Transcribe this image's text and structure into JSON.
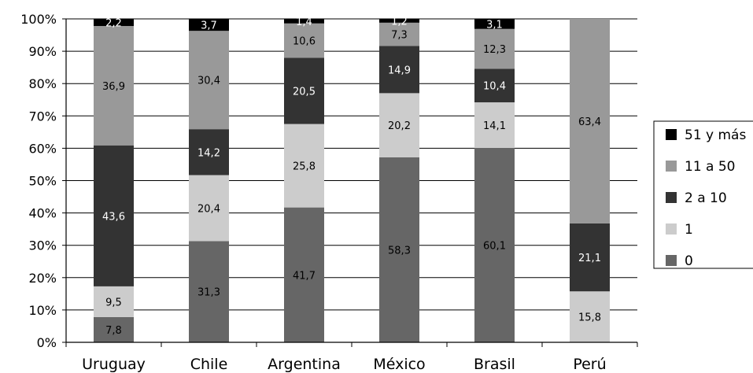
{
  "chart_data": {
    "type": "bar",
    "stacked": true,
    "normalized": true,
    "categories": [
      "Uruguay",
      "Chile",
      "Argentina",
      "México",
      "Brasil",
      "Perú"
    ],
    "series": [
      {
        "name": "0",
        "color": "#666666",
        "label_color": "#000000",
        "values": [
          7.8,
          31.3,
          41.7,
          58.3,
          60.1,
          0
        ]
      },
      {
        "name": "1",
        "color": "#cccccc",
        "label_color": "#000000",
        "values": [
          9.5,
          20.4,
          25.8,
          20.2,
          14.1,
          15.8
        ]
      },
      {
        "name": "2 a 10",
        "color": "#333333",
        "label_color": "#ffffff",
        "values": [
          43.6,
          14.2,
          20.5,
          14.9,
          10.4,
          21.1
        ]
      },
      {
        "name": "11 a 50",
        "color": "#999999",
        "label_color": "#000000",
        "values": [
          36.9,
          30.4,
          10.6,
          7.3,
          12.3,
          63.4
        ]
      },
      {
        "name": "51 y más",
        "color": "#000000",
        "label_color": "#ffffff",
        "values": [
          2.2,
          3.7,
          1.4,
          1.2,
          3.1,
          0
        ]
      }
    ],
    "data_labels": [
      [
        "7,8",
        "31,3",
        "41,7",
        "58,3",
        "60,1",
        ""
      ],
      [
        "9,5",
        "20,4",
        "25,8",
        "20,2",
        "14,1",
        "15,8"
      ],
      [
        "43,6",
        "14,2",
        "20,5",
        "14,9",
        "10,4",
        "21,1"
      ],
      [
        "36,9",
        "30,4",
        "10,6",
        "7,3",
        "12,3",
        "63,4"
      ],
      [
        "2,2",
        "3,7",
        "1,4",
        "1,2",
        "3,1",
        ""
      ]
    ],
    "ylim": [
      0,
      100
    ],
    "y_ticks": [
      "0%",
      "10%",
      "20%",
      "30%",
      "40%",
      "50%",
      "60%",
      "70%",
      "80%",
      "90%",
      "100%"
    ],
    "grid": true,
    "legend_position": "right",
    "legend_order": [
      "51 y más",
      "11 a 50",
      "2 a 10",
      "1",
      "0"
    ],
    "title": "",
    "xlabel": "",
    "ylabel": ""
  }
}
